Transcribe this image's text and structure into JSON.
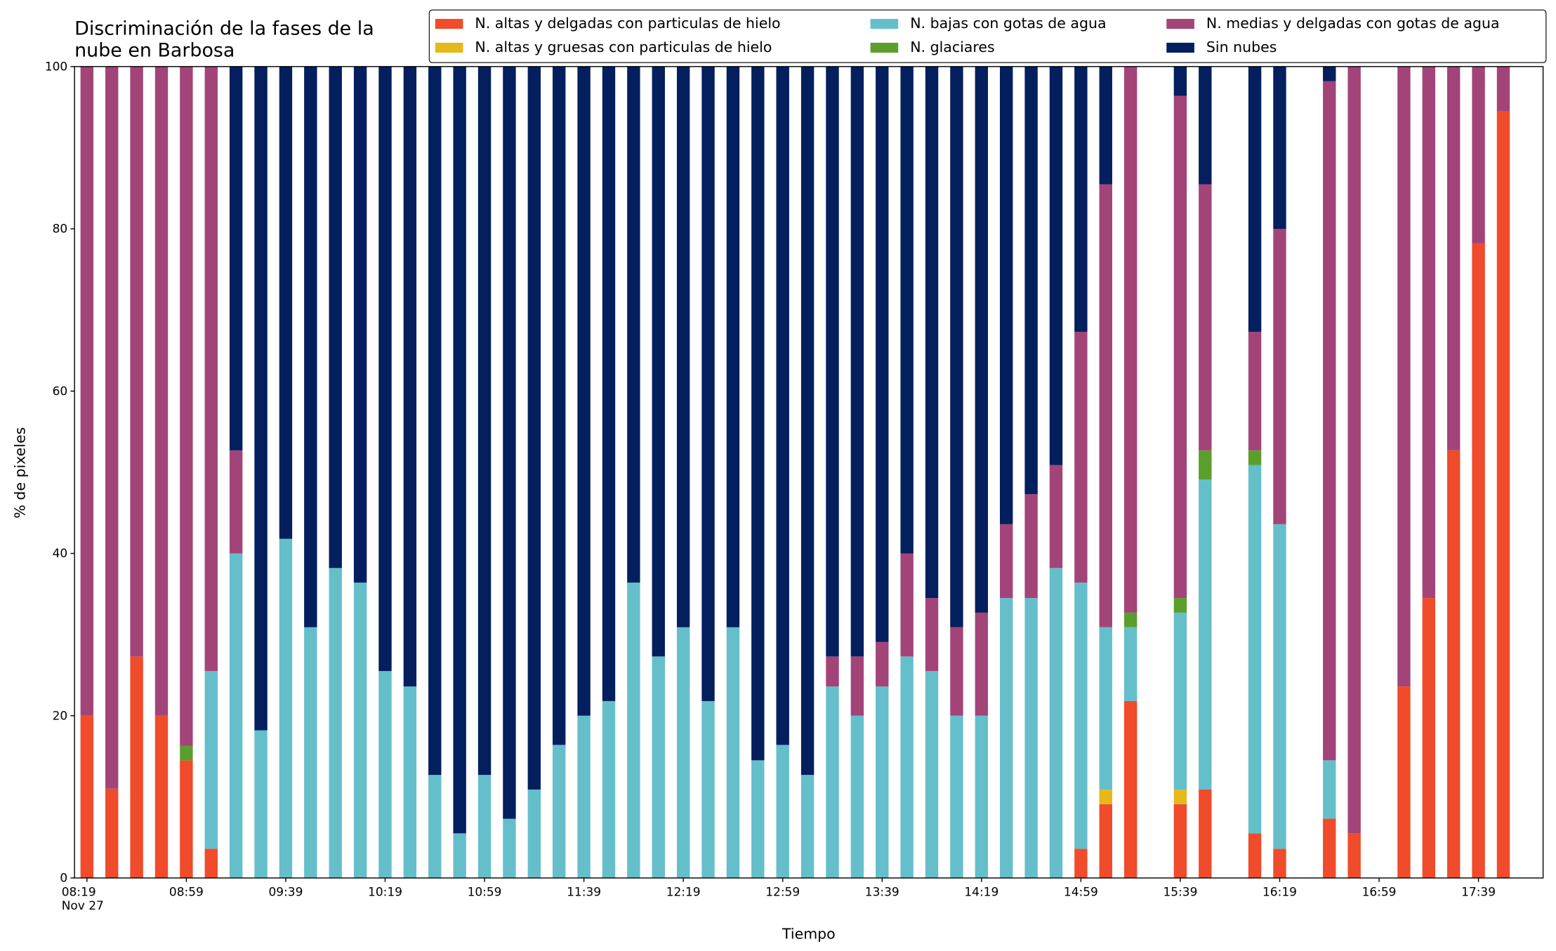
{
  "chart_data": {
    "type": "stacked_bar",
    "title": "Discriminación de la fases de la\nnube en Barbosa",
    "xlabel": "Tiempo",
    "ylabel": "% de pixeles",
    "x": [
      "Nov 27 08:19",
      "Nov 27 08:29",
      "Nov 27 08:39",
      "Nov 27 08:49",
      "Nov 27 08:59",
      "Nov 27 09:09",
      "Nov 27 09:19",
      "Nov 27 09:29",
      "Nov 27 09:39",
      "Nov 27 09:49",
      "Nov 27 09:59",
      "Nov 27 10:09",
      "Nov 27 10:19",
      "Nov 27 10:29",
      "Nov 27 10:39",
      "Nov 27 10:49",
      "Nov 27 10:59",
      "Nov 27 11:09",
      "Nov 27 11:19",
      "Nov 27 11:29",
      "Nov 27 11:39",
      "Nov 27 11:49",
      "Nov 27 11:59",
      "Nov 27 12:09",
      "Nov 27 12:19",
      "Nov 27 12:29",
      "Nov 27 12:39",
      "Nov 27 12:49",
      "Nov 27 12:59",
      "Nov 27 13:09",
      "Nov 27 13:19",
      "Nov 27 13:29",
      "Nov 27 13:39",
      "Nov 27 13:49",
      "Nov 27 13:59",
      "Nov 27 14:09",
      "Nov 27 14:19",
      "Nov 27 14:29",
      "Nov 27 14:39",
      "Nov 27 14:49",
      "Nov 27 14:59",
      "Nov 27 15:09",
      "Nov 27 15:19",
      "Nov 27 15:29",
      "Nov 27 15:39",
      "Nov 27 15:49",
      "Nov 27 15:59",
      "Nov 27 16:09",
      "Nov 27 16:19",
      "Nov 27 16:29",
      "Nov 27 16:39",
      "Nov 27 16:49",
      "Nov 27 16:59",
      "Nov 27 17:09",
      "Nov 27 17:19",
      "Nov 27 17:29",
      "Nov 27 17:39",
      "Nov 27 17:49"
    ],
    "series": [
      {
        "name": "N. altas y delgadas con particulas de hielo",
        "color": "#f04b2a",
        "values": [
          20,
          11,
          27.3,
          20,
          14.5,
          3.6,
          0,
          0,
          0,
          0,
          0,
          0,
          0,
          0,
          0,
          0,
          0,
          0,
          0,
          0,
          0,
          0,
          0,
          0,
          0,
          0,
          0,
          0,
          0,
          0,
          0,
          0,
          0,
          0,
          0,
          0,
          0,
          0,
          0,
          0,
          3.6,
          9.1,
          21.8,
          null,
          9.1,
          10.9,
          null,
          5.5,
          3.6,
          null,
          7.3,
          5.5,
          null,
          23.6,
          34.5,
          52.7,
          78.2,
          94.5
        ]
      },
      {
        "name": "N. altas y gruesas con particulas de hielo",
        "color": "#e5b81b",
        "values": [
          0,
          0,
          0,
          0,
          0,
          0,
          0,
          0,
          0,
          0,
          0,
          0,
          0,
          0,
          0,
          0,
          0,
          0,
          0,
          0,
          0,
          0,
          0,
          0,
          0,
          0,
          0,
          0,
          0,
          0,
          0,
          0,
          0,
          0,
          0,
          0,
          0,
          0,
          0,
          0,
          0,
          1.8,
          0,
          null,
          1.8,
          0,
          null,
          0,
          0,
          null,
          0,
          0,
          null,
          0,
          0,
          0,
          0,
          0
        ]
      },
      {
        "name": "N. bajas con gotas de agua",
        "color": "#64bfcb",
        "values": [
          0,
          0,
          0,
          0,
          0,
          21.9,
          40,
          18.2,
          41.8,
          30.9,
          38.2,
          36.4,
          25.5,
          23.6,
          12.7,
          5.5,
          12.7,
          7.3,
          10.9,
          16.4,
          20,
          21.8,
          36.4,
          27.3,
          30.9,
          21.8,
          30.9,
          14.5,
          16.4,
          12.7,
          23.6,
          20,
          23.6,
          27.3,
          25.5,
          20,
          20,
          34.5,
          34.5,
          38.2,
          32.8,
          20,
          9.1,
          null,
          21.8,
          38.2,
          null,
          45.4,
          40,
          null,
          7.2,
          0,
          null,
          0,
          0,
          0,
          0,
          0
        ]
      },
      {
        "name": "N. glaciares",
        "color": "#5c9e2d",
        "values": [
          0,
          0,
          0,
          0,
          1.8,
          0,
          0,
          0,
          0,
          0,
          0,
          0,
          0,
          0,
          0,
          0,
          0,
          0,
          0,
          0,
          0,
          0,
          0,
          0,
          0,
          0,
          0,
          0,
          0,
          0,
          0,
          0,
          0,
          0,
          0,
          0,
          0,
          0,
          0,
          0,
          0,
          0,
          1.8,
          null,
          1.8,
          3.6,
          null,
          1.8,
          0,
          null,
          0,
          0,
          null,
          0,
          0,
          0,
          0,
          0
        ]
      },
      {
        "name": "N. medias y delgadas con gotas de agua",
        "color": "#a34479",
        "values": [
          80,
          89,
          72.7,
          80,
          83.7,
          74.5,
          12.7,
          0,
          0,
          0,
          0,
          0,
          0,
          0,
          0,
          0,
          0,
          0,
          0,
          0,
          0,
          0,
          0,
          0,
          0,
          0,
          0,
          0,
          0,
          0,
          3.7,
          7.3,
          5.5,
          12.7,
          9,
          10.9,
          12.7,
          9.1,
          12.8,
          12.7,
          30.9,
          54.6,
          67.3,
          null,
          61.9,
          32.8,
          null,
          14.6,
          36.4,
          null,
          83.7,
          94.5,
          null,
          76.4,
          65.5,
          47.3,
          21.8,
          5.5
        ]
      },
      {
        "name": "Sin nubes",
        "color": "#031f5e",
        "values": [
          0,
          0,
          0,
          0,
          0,
          0,
          47.3,
          81.8,
          58.2,
          69.1,
          61.8,
          63.6,
          74.5,
          76.4,
          87.3,
          94.5,
          87.3,
          92.7,
          89.1,
          83.6,
          80,
          78.2,
          63.6,
          72.7,
          69.1,
          78.2,
          69.1,
          85.5,
          83.6,
          87.3,
          72.7,
          72.7,
          70.9,
          60,
          65.5,
          69.1,
          67.3,
          56.4,
          52.7,
          49.1,
          32.7,
          14.5,
          0,
          null,
          3.6,
          14.5,
          null,
          32.7,
          20,
          null,
          1.8,
          0,
          null,
          0,
          0,
          0,
          0,
          0
        ]
      }
    ],
    "xlim": [
      "Nov 27 08:14",
      "Nov 27 18:05"
    ],
    "xticks": [
      {
        "value": "Nov 27 08:19",
        "label": "08:19\nNov 27"
      },
      {
        "value": "Nov 27 08:59",
        "label": "08:59"
      },
      {
        "value": "Nov 27 09:39",
        "label": "09:39"
      },
      {
        "value": "Nov 27 10:19",
        "label": "10:19"
      },
      {
        "value": "Nov 27 10:59",
        "label": "10:59"
      },
      {
        "value": "Nov 27 11:39",
        "label": "11:39"
      },
      {
        "value": "Nov 27 12:19",
        "label": "12:19"
      },
      {
        "value": "Nov 27 12:59",
        "label": "12:59"
      },
      {
        "value": "Nov 27 13:39",
        "label": "13:39"
      },
      {
        "value": "Nov 27 14:19",
        "label": "14:19"
      },
      {
        "value": "Nov 27 14:59",
        "label": "14:59"
      },
      {
        "value": "Nov 27 15:39",
        "label": "15:39"
      },
      {
        "value": "Nov 27 16:19",
        "label": "16:19"
      },
      {
        "value": "Nov 27 16:59",
        "label": "16:59"
      },
      {
        "value": "Nov 27 17:39",
        "label": "17:39"
      }
    ],
    "ylim": [
      0,
      100
    ],
    "yticks": [
      0,
      20,
      40,
      60,
      80,
      100
    ],
    "legend": "upper right",
    "grid": false
  }
}
